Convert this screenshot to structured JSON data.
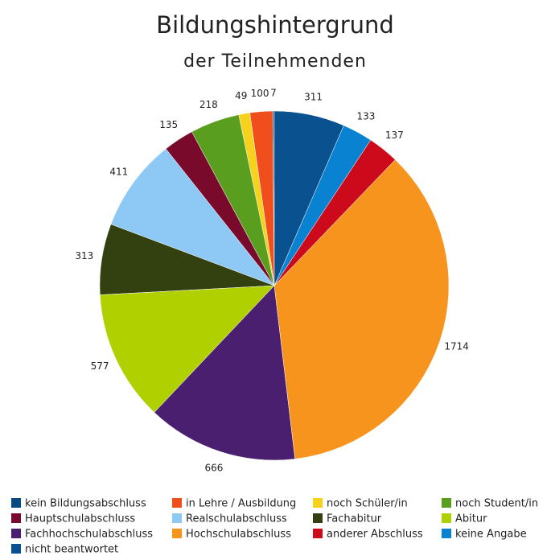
{
  "chart_data": {
    "type": "pie",
    "title": "Bildungshintergrund",
    "subtitle": "der Teilnehmenden",
    "categories": [
      "kein Bildungsabschluss",
      "in Lehre / Ausbildung",
      "noch Schüler/in",
      "noch Student/in",
      "Hauptschulabschluss",
      "Realschulabschluss",
      "Fachabitur",
      "Abitur",
      "Fachhochschulabschluss",
      "Hochschulabschluss",
      "anderer Abschluss",
      "keine Angabe",
      "nicht beantwortet"
    ],
    "values": [
      7,
      100,
      49,
      218,
      135,
      411,
      313,
      577,
      666,
      1714,
      137,
      133,
      311
    ],
    "colors": [
      "#0b4a80",
      "#f04e1c",
      "#f6d21c",
      "#5a9e20",
      "#7a0a2c",
      "#8ec9f6",
      "#33400f",
      "#b0d000",
      "#4b1f6f",
      "#f7941d",
      "#cc0a1c",
      "#0a82d2",
      "#0a5190"
    ],
    "legend": "bottom"
  }
}
